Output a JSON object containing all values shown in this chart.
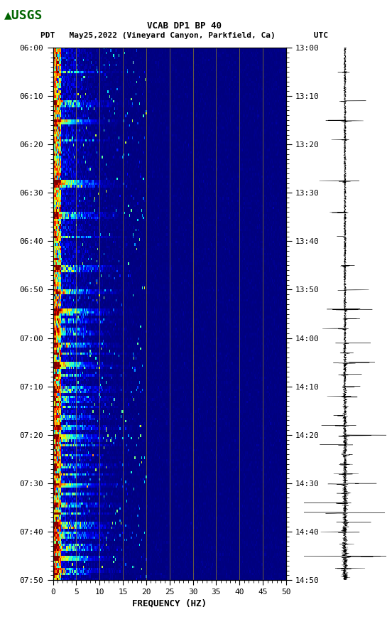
{
  "title_line1": "VCAB DP1 BP 40",
  "title_line2": "PDT   May25,2022 (Vineyard Canyon, Parkfield, Ca)        UTC",
  "xlabel": "FREQUENCY (HZ)",
  "freq_min": 0,
  "freq_max": 50,
  "freq_ticks": [
    0,
    5,
    10,
    15,
    20,
    25,
    30,
    35,
    40,
    45,
    50
  ],
  "left_time_labels": [
    "06:00",
    "06:10",
    "06:20",
    "06:30",
    "06:40",
    "06:50",
    "07:00",
    "07:10",
    "07:20",
    "07:30",
    "07:40",
    "07:50"
  ],
  "right_time_labels": [
    "13:00",
    "13:10",
    "13:20",
    "13:30",
    "13:40",
    "13:50",
    "14:00",
    "14:10",
    "14:20",
    "14:30",
    "14:40",
    "14:50"
  ],
  "n_time_steps": 220,
  "n_freq_steps": 250,
  "vertical_lines_freq": [
    5,
    10,
    15,
    20,
    25,
    30,
    35,
    40,
    45
  ],
  "background_color": "#ffffff",
  "spectrogram_colormap": "jet",
  "usgs_green": "#006400",
  "figure_width": 5.52,
  "figure_height": 8.92,
  "dpi": 100
}
